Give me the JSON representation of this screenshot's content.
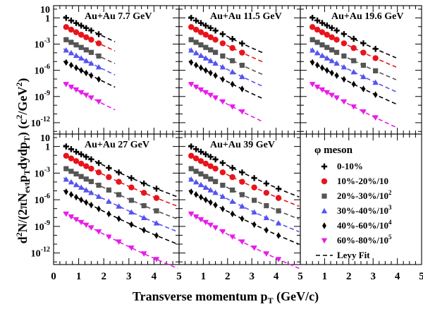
{
  "figure": {
    "xlabel_main": "Transverse momentum p",
    "xlabel_sub": "T",
    "xlabel_unit": " (GeV/c)",
    "ylabel": {
      "d": "d",
      "sup2": "2",
      "n_over": "N/(2πN",
      "evt": "evt",
      "p": "p",
      "t1": "T",
      "dydp": "dydp",
      "t2": "T",
      "close": ")",
      "unit": " (c",
      "unit_sup": "2",
      "unit_mid": "/GeV",
      "unit_sup2": "2",
      "unit_close": ")"
    },
    "x_ticks": [
      "0",
      "1",
      "2",
      "3",
      "4",
      "5"
    ],
    "y_ticks": [
      {
        "base": "10",
        "exp": "-12"
      },
      {
        "base": "10",
        "exp": "-9"
      },
      {
        "base": "10",
        "exp": "-6"
      },
      {
        "base": "10",
        "exp": "-3"
      },
      {
        "base": "1",
        "exp": ""
      },
      {
        "base": "10",
        "exp": ""
      }
    ],
    "colors": {
      "s0": "#000000",
      "s1": "#e8141c",
      "s2": "#555555",
      "s3": "#5454f0",
      "s4": "#000000",
      "s5": "#e81ce8",
      "fit": "#000000"
    },
    "legend": {
      "title": "φ meson",
      "entries": [
        {
          "label": "0-10%",
          "sup": ""
        },
        {
          "label": "10%-20%/10",
          "sup": ""
        },
        {
          "label": "20%-30%/10",
          "sup": "2"
        },
        {
          "label": "30%-40%/10",
          "sup": "3"
        },
        {
          "label": "40%-60%/10",
          "sup": "4"
        },
        {
          "label": "60%-80%/10",
          "sup": "5"
        }
      ],
      "fit_label": "Levy Fit"
    }
  },
  "chart_data": {
    "type": "scatter",
    "xlabel": "Transverse momentum pT (GeV/c)",
    "ylabel": "d2N/(2πNevt pT dydpT) (c2/GeV2)",
    "x_range": [
      0,
      5
    ],
    "y_range_log10": [
      -13.3,
      1.4
    ],
    "y_scale": "log",
    "grid": false,
    "panels": [
      {
        "title": "Au+Au 7.7 GeV",
        "pt_max": 2.0,
        "b": [
          0.3,
          0.3,
          0.3,
          0.3,
          0.3,
          0.3
        ],
        "series_order": [
          "0-10%",
          "10%-20%/10",
          "20%-30%/100",
          "30%-40%/1000",
          "40%-60%/10^4",
          "60%-80%/10^5"
        ]
      },
      {
        "title": "Au+Au 11.5 GeV",
        "pt_max": 3.0,
        "b": [
          0.32,
          0.3,
          0.3,
          0.3,
          0.3,
          0.3
        ]
      },
      {
        "title": "Au+Au 19.6 GeV",
        "pt_max": 3.5,
        "b": [
          0.25,
          0.3,
          0.3,
          0.3,
          0.3,
          0.3
        ]
      },
      {
        "title": "Au+Au 27 GeV",
        "pt_max": 4.5,
        "b": [
          0.3,
          0.3,
          0.3,
          0.3,
          0.3,
          0.3
        ]
      },
      {
        "title": "Au+Au 39 GeV",
        "pt_max": 4.5,
        "b": [
          0.3,
          0.3,
          0.3,
          0.3,
          0.3,
          0.3
        ]
      }
    ],
    "series": [
      {
        "name": "0-10%",
        "log10_at_0p5": 0.0,
        "slope_per_GeV": -1.5
      },
      {
        "name": "10%-20%/10",
        "log10_at_0p5": -1.05,
        "slope_per_GeV": -1.5
      },
      {
        "name": "20%-30%/10^2",
        "log10_at_0p5": -2.5,
        "slope_per_GeV": -1.5
      },
      {
        "name": "30%-40%/10^3",
        "log10_at_0p5": -3.7,
        "slope_per_GeV": -1.55
      },
      {
        "name": "40%-60%/10^4",
        "log10_at_0p5": -5.1,
        "slope_per_GeV": -1.55
      },
      {
        "name": "60%-80%/10^5",
        "log10_at_0p5": -7.6,
        "slope_per_GeV": -1.6
      }
    ],
    "fit": "Levy Fit (dashed)"
  }
}
